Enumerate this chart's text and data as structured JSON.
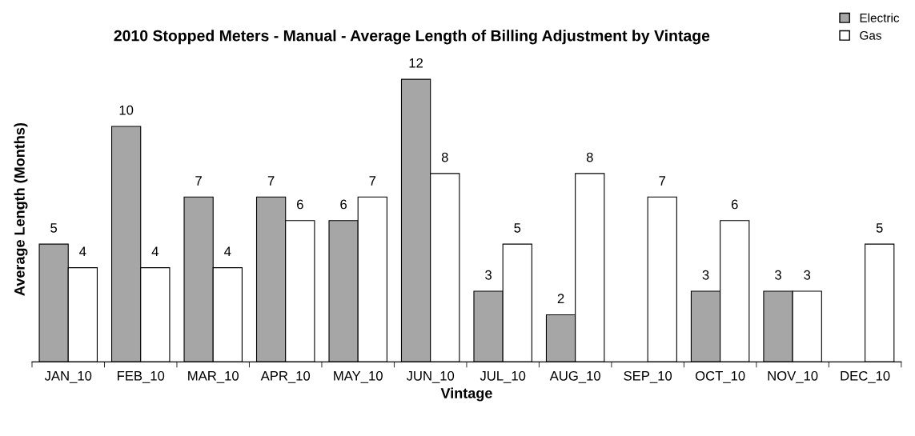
{
  "chart_data": {
    "type": "bar",
    "title": "2010 Stopped Meters - Manual - Average Length of Billing Adjustment by Vintage",
    "xlabel": "Vintage",
    "ylabel": "Average Length (Months)",
    "categories": [
      "JAN_10",
      "FEB_10",
      "MAR_10",
      "APR_10",
      "MAY_10",
      "JUN_10",
      "JUL_10",
      "AUG_10",
      "SEP_10",
      "OCT_10",
      "NOV_10",
      "DEC_10"
    ],
    "series": [
      {
        "name": "Electric",
        "color": "#a6a6a6",
        "values": [
          5,
          10,
          7,
          7,
          6,
          12,
          3,
          2,
          null,
          3,
          3,
          null
        ]
      },
      {
        "name": "Gas",
        "color": "#ffffff",
        "values": [
          4,
          4,
          4,
          6,
          7,
          8,
          5,
          8,
          7,
          6,
          3,
          5
        ]
      }
    ],
    "data_labels": true,
    "legend": "top right",
    "grid": false
  }
}
